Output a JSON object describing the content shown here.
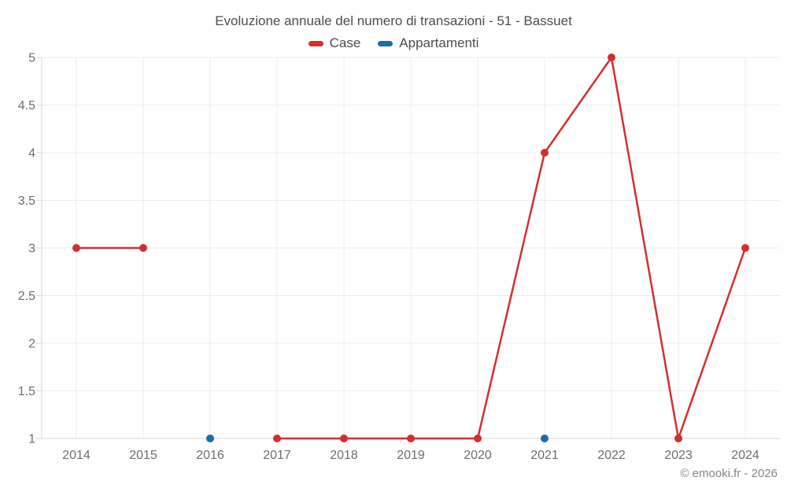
{
  "watermark": "© emooki.fr - 2026",
  "colors": {
    "case_red": "#d32f2f",
    "appartamenti_blue": "#1c6ea4"
  },
  "chart_data": {
    "type": "line",
    "title": "Evoluzione annuale del numero di transazioni - 51 - Bassuet",
    "x": [
      2014,
      2015,
      2016,
      2017,
      2018,
      2019,
      2020,
      2021,
      2022,
      2023,
      2024
    ],
    "series": [
      {
        "name": "Case",
        "color": "#d32f2f",
        "values": [
          3,
          3,
          null,
          1,
          1,
          1,
          1,
          4,
          5,
          1,
          3
        ]
      },
      {
        "name": "Appartamenti",
        "color": "#1c6ea4",
        "values": [
          null,
          null,
          1,
          null,
          null,
          null,
          null,
          1,
          null,
          null,
          null
        ]
      }
    ],
    "xlabel": "",
    "ylabel": "",
    "ylim": [
      1,
      5
    ],
    "yticks": [
      1,
      1.5,
      2,
      2.5,
      3,
      3.5,
      4,
      4.5,
      5
    ],
    "grid": true,
    "legend_position": "top-center"
  }
}
